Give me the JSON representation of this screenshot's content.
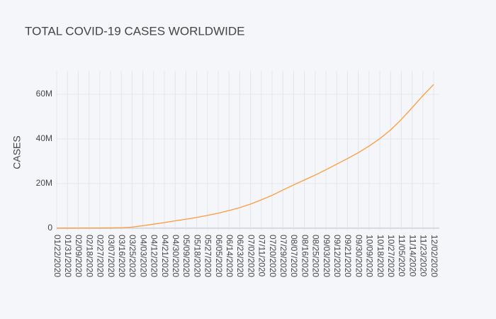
{
  "chart_data": {
    "type": "line",
    "title": "TOTAL COVID-19 CASES WORLDWIDE",
    "y_label": "CASES",
    "x": [
      "01/22/2020",
      "01/31/2020",
      "02/09/2020",
      "02/18/2020",
      "02/27/2020",
      "03/07/2020",
      "03/16/2020",
      "03/25/2020",
      "04/03/2020",
      "04/12/2020",
      "04/21/2020",
      "04/30/2020",
      "05/09/2020",
      "05/18/2020",
      "05/27/2020",
      "06/05/2020",
      "06/14/2020",
      "06/23/2020",
      "07/02/2020",
      "07/11/2020",
      "07/20/2020",
      "07/29/2020",
      "08/07/2020",
      "08/16/2020",
      "08/25/2020",
      "09/03/2020",
      "09/12/2020",
      "09/21/2020",
      "09/30/2020",
      "10/09/2020",
      "10/18/2020",
      "10/27/2020",
      "11/05/2020",
      "11/14/2020",
      "11/23/2020",
      "12/02/2020"
    ],
    "series": [
      {
        "name": "CASES",
        "color": "#fd9a3c",
        "values": [
          600,
          10000,
          40000,
          70000,
          80000,
          100000,
          180000,
          470000,
          1100000,
          1800000,
          2500000,
          3300000,
          4000000,
          4800000,
          5700000,
          6700000,
          7900000,
          9200000,
          10800000,
          12700000,
          14700000,
          17100000,
          19400000,
          21600000,
          23800000,
          26200000,
          28700000,
          31200000,
          33800000,
          36800000,
          40100000,
          44000000,
          48700000,
          54000000,
          59400000,
          64400000
        ]
      }
    ],
    "ylim": [
      -1000000,
      70500000
    ],
    "yticks": [
      0,
      {
        "value": 20000000,
        "label": "20M"
      },
      {
        "value": 40000000,
        "label": "40M"
      },
      {
        "value": 60000000,
        "label": "60M"
      }
    ],
    "grid": true
  }
}
